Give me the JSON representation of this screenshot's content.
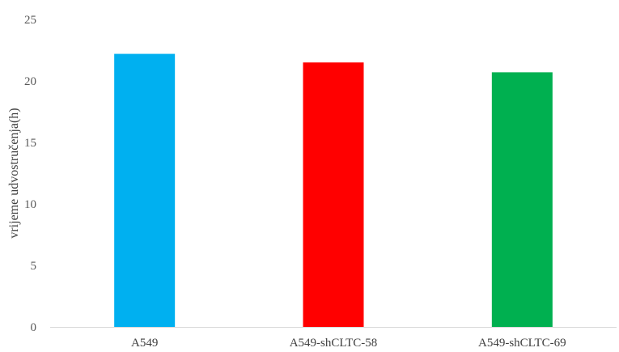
{
  "chart_data": {
    "type": "bar",
    "categories": [
      "A549",
      "A549-shCLTC-58",
      "A549-shCLTC-69"
    ],
    "values": [
      22.2,
      21.5,
      20.7
    ],
    "colors": [
      "#00B0F0",
      "#FF0000",
      "#00B050"
    ],
    "title": "",
    "xlabel": "",
    "ylabel": "vrijeme udvostručenja(h)",
    "ylim": [
      0,
      25
    ],
    "yticks": [
      0,
      5,
      10,
      15,
      20,
      25
    ],
    "grid": false,
    "legend": "none"
  }
}
